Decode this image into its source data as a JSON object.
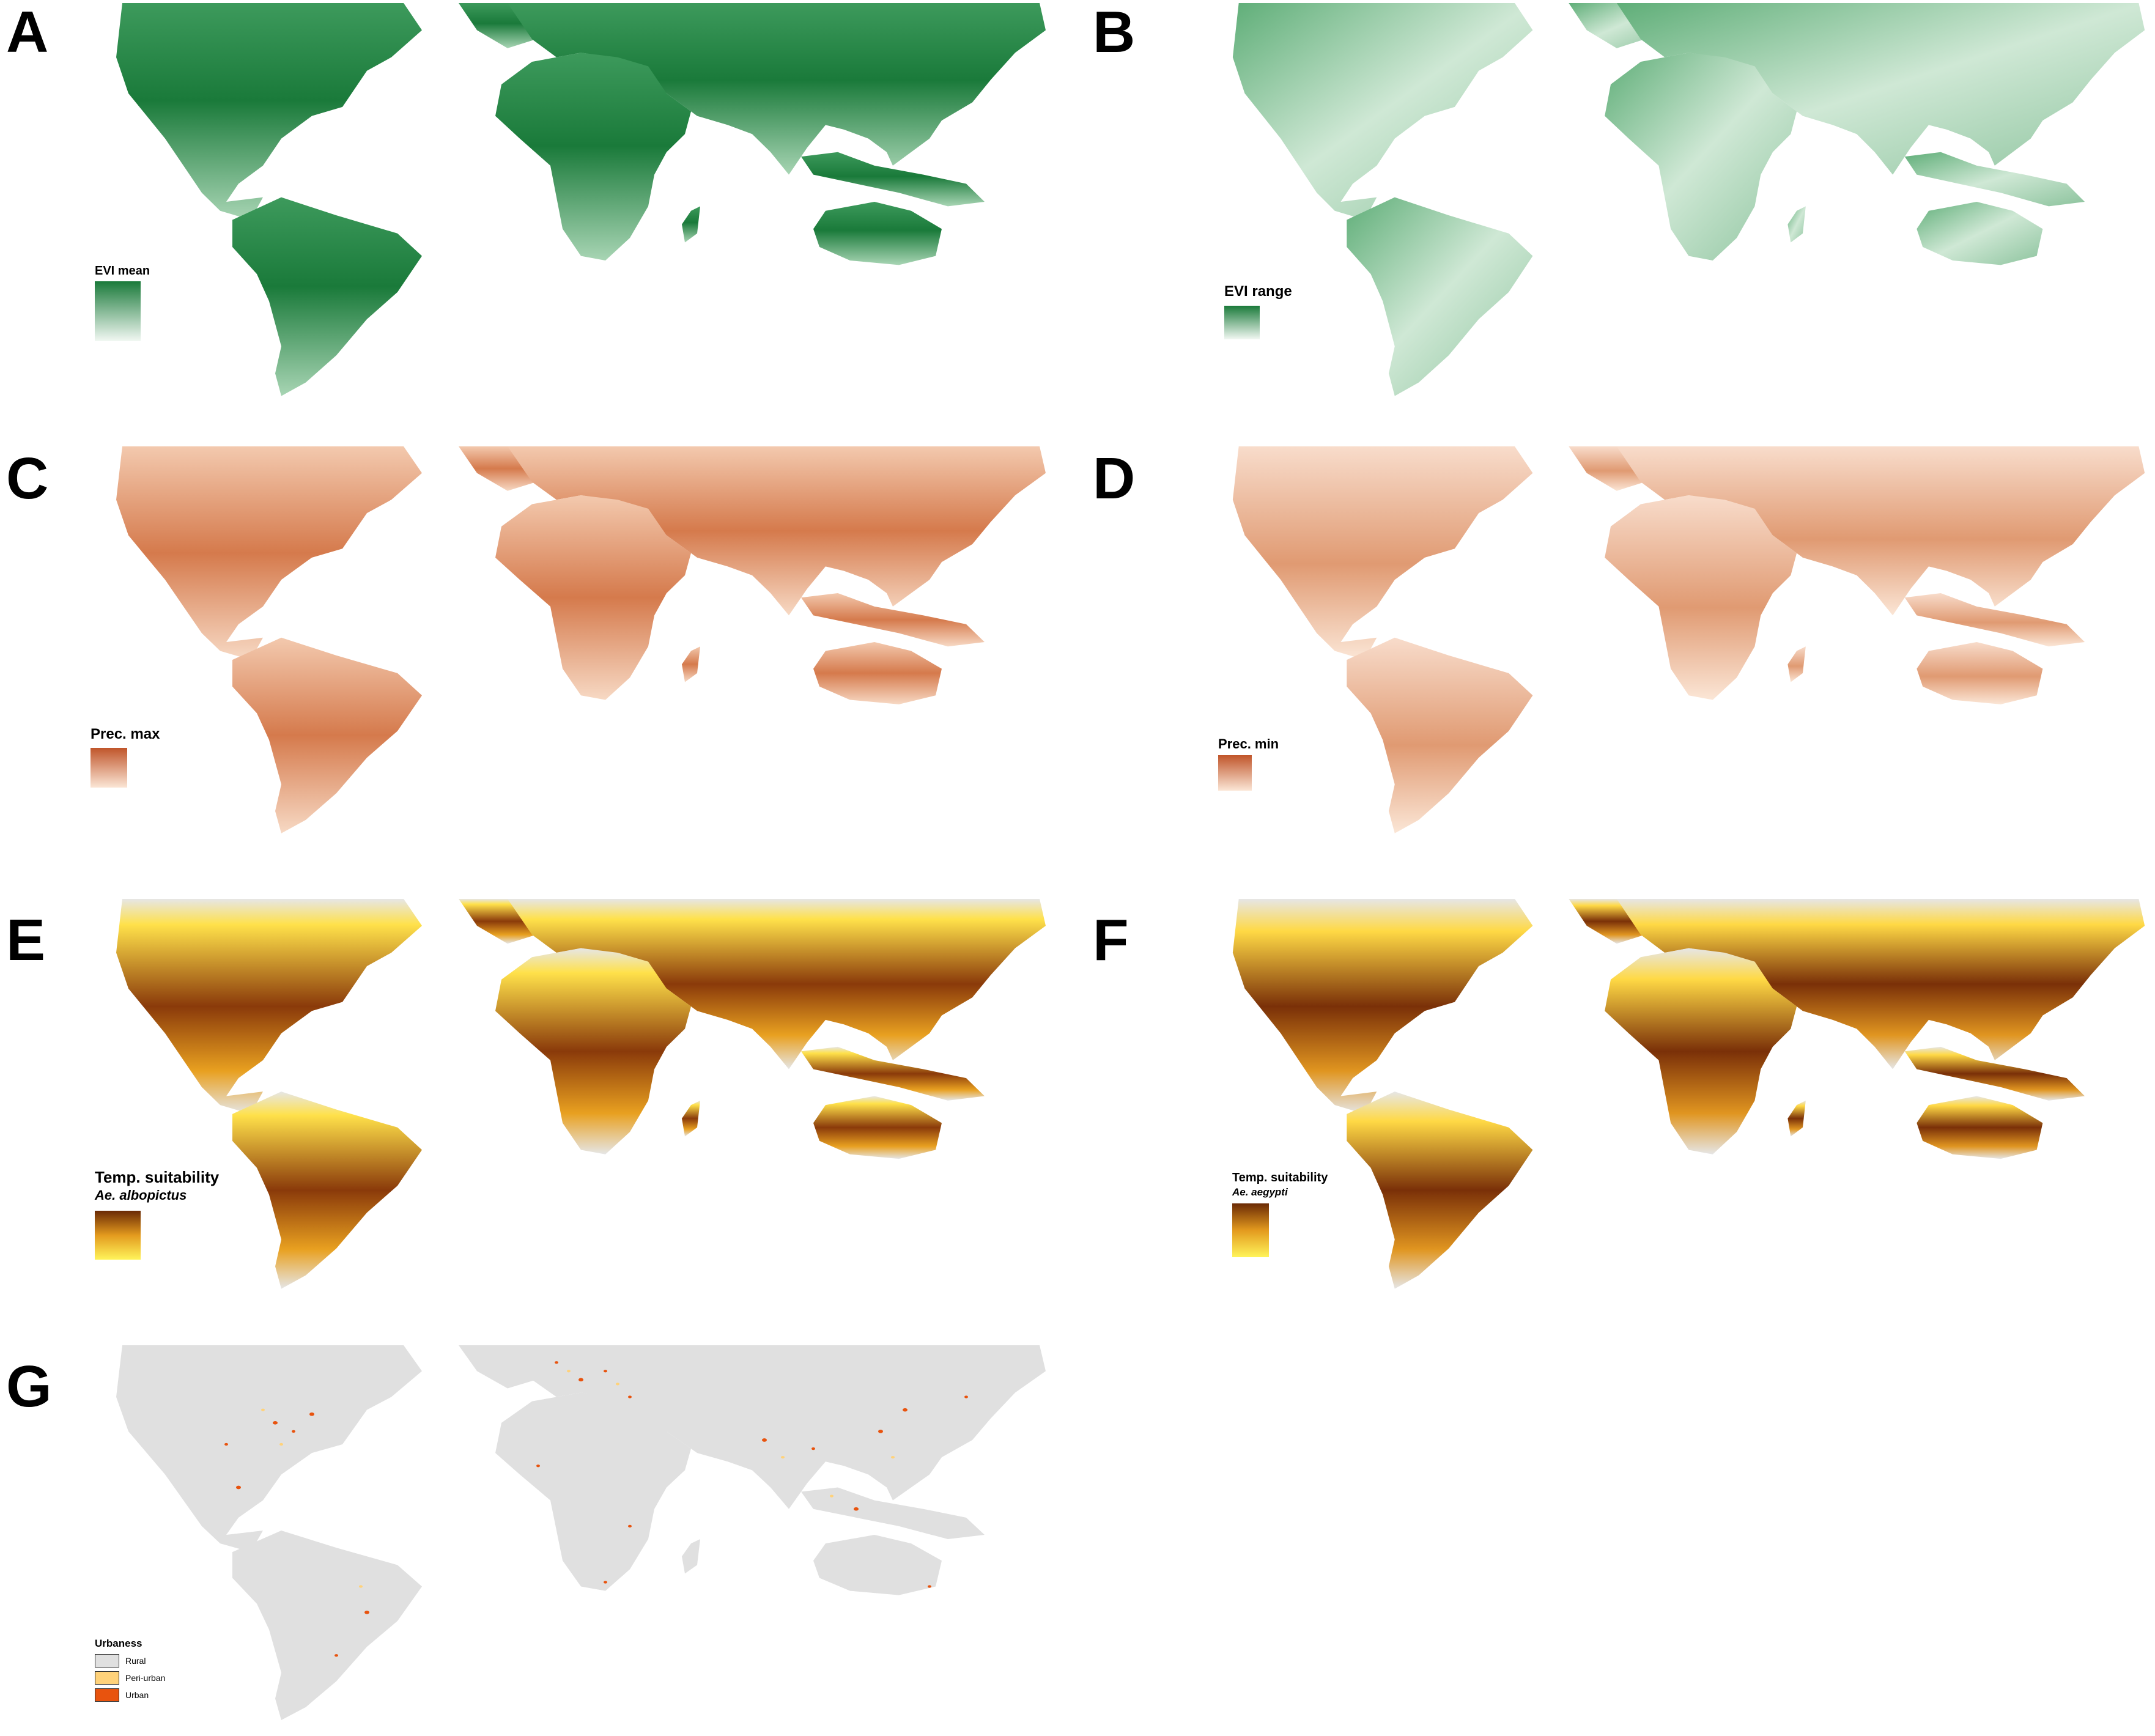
{
  "panels": [
    {
      "letter": "A",
      "legend": "EVI mean",
      "colors": [
        "#1a7a3a",
        "#f2f8f3"
      ],
      "style": "green-dark"
    },
    {
      "letter": "B",
      "legend": "EVI range",
      "colors": [
        "#1a7a3a",
        "#f2f8f3"
      ],
      "style": "green-light"
    },
    {
      "letter": "C",
      "legend": "Prec. max",
      "colors": [
        "#c0552a",
        "#fbe6d6"
      ],
      "style": "orange-mid"
    },
    {
      "letter": "D",
      "legend": "Prec. min",
      "colors": [
        "#c0552a",
        "#fbe6d6"
      ],
      "style": "orange-light"
    },
    {
      "letter": "E",
      "legend": "Temp. suitability",
      "species": "Ae. albopictus",
      "colors": [
        "#6b2a05",
        "#fff45a"
      ],
      "style": "temp"
    },
    {
      "letter": "F",
      "legend": "Temp. suitability",
      "species": "Ae. aegypti",
      "colors": [
        "#6b2a05",
        "#fff45a"
      ],
      "style": "temp"
    },
    {
      "letter": "G",
      "legend": "Urbaness",
      "style": "urban",
      "categories": [
        {
          "label": "Rural",
          "color": "#e0e0e0"
        },
        {
          "label": "Peri-urban",
          "color": "#ffd27a"
        },
        {
          "label": "Urban",
          "color": "#e8530e"
        }
      ]
    }
  ]
}
